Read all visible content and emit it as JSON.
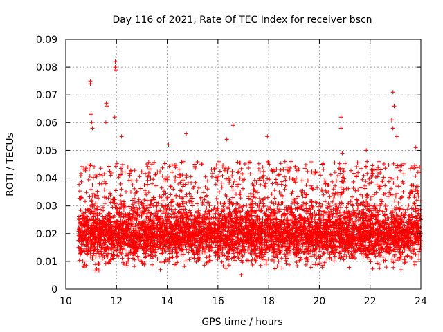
{
  "chart_data": {
    "type": "scatter",
    "title": "Day 116 of 2021, Rate Of TEC Index for receiver bscn",
    "xlabel": "GPS time / hours",
    "ylabel": "ROTI / TECUs",
    "xlim": [
      10,
      24
    ],
    "ylim": [
      0,
      0.09
    ],
    "xticks": [
      10,
      12,
      14,
      16,
      18,
      20,
      22,
      24
    ],
    "xtick_labels": [
      "10",
      "12",
      "14",
      "16",
      "18",
      "20",
      "22",
      "24"
    ],
    "yticks": [
      0,
      0.01,
      0.02,
      0.03,
      0.04,
      0.05,
      0.06,
      0.07,
      0.08,
      0.09
    ],
    "ytick_labels": [
      "0",
      "0.01",
      "0.02",
      "0.03",
      "0.04",
      "0.05",
      "0.06",
      "0.07",
      "0.08",
      "0.09"
    ],
    "grid": true,
    "marker": "+",
    "marker_color": "#ff0000",
    "series": [
      {
        "name": "ROTI",
        "x_start": 10.5,
        "x_end": 24.0,
        "approx_points": 6000,
        "typical_range": [
          0.01,
          0.03
        ],
        "outliers": [
          {
            "x": 10.97,
            "y": 0.075
          },
          {
            "x": 10.97,
            "y": 0.074
          },
          {
            "x": 11.0,
            "y": 0.063
          },
          {
            "x": 11.02,
            "y": 0.06
          },
          {
            "x": 11.05,
            "y": 0.058
          },
          {
            "x": 11.6,
            "y": 0.067
          },
          {
            "x": 11.62,
            "y": 0.066
          },
          {
            "x": 11.58,
            "y": 0.06
          },
          {
            "x": 11.95,
            "y": 0.082
          },
          {
            "x": 11.95,
            "y": 0.08
          },
          {
            "x": 11.97,
            "y": 0.079
          },
          {
            "x": 11.93,
            "y": 0.062
          },
          {
            "x": 12.2,
            "y": 0.055
          },
          {
            "x": 14.05,
            "y": 0.052
          },
          {
            "x": 14.75,
            "y": 0.056
          },
          {
            "x": 16.35,
            "y": 0.054
          },
          {
            "x": 16.6,
            "y": 0.059
          },
          {
            "x": 17.95,
            "y": 0.055
          },
          {
            "x": 20.85,
            "y": 0.062
          },
          {
            "x": 20.85,
            "y": 0.058
          },
          {
            "x": 20.9,
            "y": 0.049
          },
          {
            "x": 21.85,
            "y": 0.05
          },
          {
            "x": 22.9,
            "y": 0.071
          },
          {
            "x": 22.95,
            "y": 0.066
          },
          {
            "x": 22.85,
            "y": 0.061
          },
          {
            "x": 22.9,
            "y": 0.058
          },
          {
            "x": 23.05,
            "y": 0.055
          },
          {
            "x": 23.8,
            "y": 0.051
          },
          {
            "x": 23.95,
            "y": 0.044
          }
        ]
      }
    ]
  }
}
